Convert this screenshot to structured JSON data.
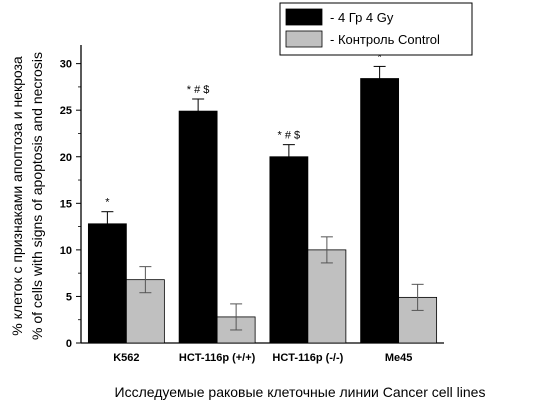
{
  "chart_data": {
    "type": "bar",
    "title": "",
    "xlabel": "Исследуемые раковые клеточные линии Cancer cell lines",
    "ylabel_line1": "% клеток с признаками апоптоза и некроза",
    "ylabel_line2": "% of cells with signs of apoptosis and necrosis",
    "ylim": [
      0,
      32
    ],
    "yticks": [
      0,
      5,
      10,
      15,
      20,
      25,
      30
    ],
    "grid": false,
    "legend_position": "top-right",
    "categories": [
      "K562",
      "HCT-116p (+/+)",
      "HCT-116p (-/-)",
      "Me45"
    ],
    "series": [
      {
        "name": "- 4 Гр 4 Gy",
        "color": "#000000",
        "values": [
          12.8,
          24.9,
          20.0,
          28.4
        ],
        "errors": [
          1.3,
          1.3,
          1.3,
          1.3
        ],
        "annotations": [
          "*",
          "* # $",
          "* # $",
          "*"
        ]
      },
      {
        "name": "- Контроль Control",
        "color": "#c0c0c0",
        "values": [
          6.8,
          2.8,
          10.0,
          4.9
        ],
        "errors": [
          1.4,
          1.4,
          1.4,
          1.4
        ],
        "annotations": [
          "",
          "",
          "",
          ""
        ]
      }
    ]
  }
}
